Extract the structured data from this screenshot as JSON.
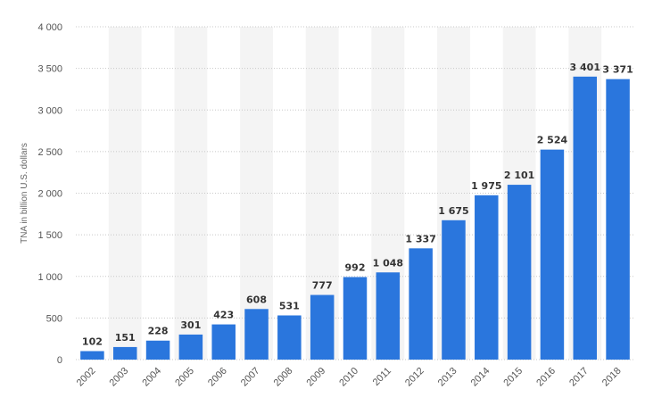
{
  "chart_data": {
    "type": "bar",
    "categories": [
      "2002",
      "2003",
      "2004",
      "2005",
      "2006",
      "2007",
      "2008",
      "2009",
      "2010",
      "2011",
      "2012",
      "2013",
      "2014",
      "2015",
      "2016",
      "2017",
      "2018"
    ],
    "values": [
      102,
      151,
      228,
      301,
      423,
      608,
      531,
      777,
      992,
      1048,
      1337,
      1675,
      1975,
      2101,
      2524,
      3401,
      3371
    ],
    "value_labels": [
      "102",
      "151",
      "228",
      "301",
      "423",
      "608",
      "531",
      "777",
      "992",
      "1 048",
      "1 337",
      "1 675",
      "1 975",
      "2 101",
      "2 524",
      "3 401",
      "3 371"
    ],
    "ylabel": "TNA in billion U.S. dollars",
    "xlabel": "",
    "ylim": [
      0,
      4000
    ],
    "yticks": [
      0,
      500,
      1000,
      1500,
      2000,
      2500,
      3000,
      3500,
      4000
    ],
    "ytick_labels": [
      "0",
      "500",
      "1 000",
      "1 500",
      "2 000",
      "2 500",
      "3 000",
      "3 500",
      "4 000"
    ],
    "grid": true,
    "colors": {
      "bar": "#2a76dd",
      "alt_band": "#f4f4f4",
      "grid": "#c8c8c8"
    }
  }
}
